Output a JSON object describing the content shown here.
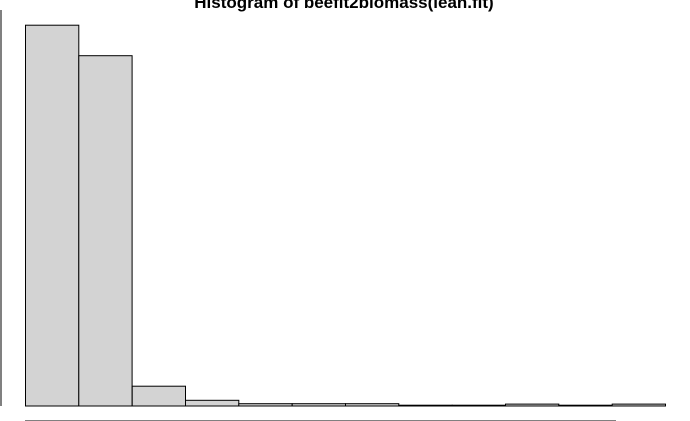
{
  "chart_data": {
    "type": "bar",
    "title": "Histogram of beefit2biomass(lean.fit)",
    "xlabel": "",
    "ylabel": "",
    "bins": [
      {
        "count": 100
      },
      {
        "count": 92
      },
      {
        "count": 5.2
      },
      {
        "count": 1.5
      },
      {
        "count": 0.6
      },
      {
        "count": 0.6
      },
      {
        "count": 0.6
      },
      {
        "count": 0.2
      },
      {
        "count": 0.2
      },
      {
        "count": 0.5
      },
      {
        "count": 0.2
      },
      {
        "count": 0.5
      }
    ],
    "ylim": [
      0,
      104
    ],
    "bar_fill": "#d3d3d3",
    "bar_stroke": "#000000",
    "grid": false,
    "legend": "none"
  }
}
